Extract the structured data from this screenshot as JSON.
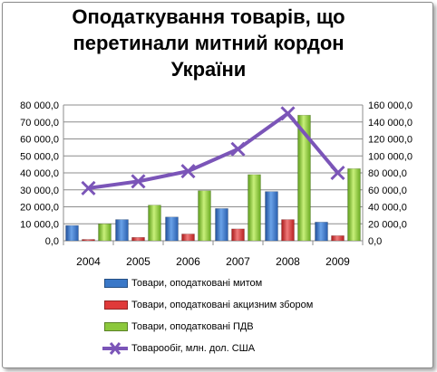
{
  "chart_data": {
    "type": "bar+line",
    "title": "Оподаткування товарів, що перетинали митний кордон України",
    "categories": [
      "2004",
      "2005",
      "2006",
      "2007",
      "2008",
      "2009"
    ],
    "ylim_left": [
      0,
      80000
    ],
    "ylim_right": [
      0,
      160000
    ],
    "left_ticks": [
      "0,0",
      "10 000,0",
      "20 000,0",
      "30 000,0",
      "40 000,0",
      "50 000,0",
      "60 000,0",
      "70 000,0",
      "80 000,0"
    ],
    "right_ticks": [
      "0,0",
      "20 000,0",
      "40 000,0",
      "60 000,0",
      "80 000,0",
      "100 000,0",
      "120 000,0",
      "140 000,0",
      "160 000,0"
    ],
    "grid": true,
    "legend_position": "bottom",
    "series": [
      {
        "name": "Товари, оподатковані митом",
        "kind": "bar",
        "axis": "left",
        "color": "#3a78c8",
        "values": [
          9000,
          12500,
          14000,
          19000,
          29000,
          11000
        ]
      },
      {
        "name": "Товари, оподатковані акцизним збором",
        "kind": "bar",
        "axis": "left",
        "color": "#e03a3a",
        "values": [
          800,
          2000,
          4000,
          7000,
          12500,
          3000
        ]
      },
      {
        "name": "Товари, оподатковані ПДВ",
        "kind": "bar",
        "axis": "left",
        "color": "#8cc83c",
        "values": [
          10000,
          21000,
          29500,
          39000,
          74000,
          42500
        ]
      },
      {
        "name": "Товарообіг, млн. дол. США",
        "kind": "line",
        "axis": "right",
        "color": "#7b55b8",
        "values": [
          62000,
          70000,
          82000,
          108000,
          150000,
          80000
        ]
      }
    ]
  }
}
